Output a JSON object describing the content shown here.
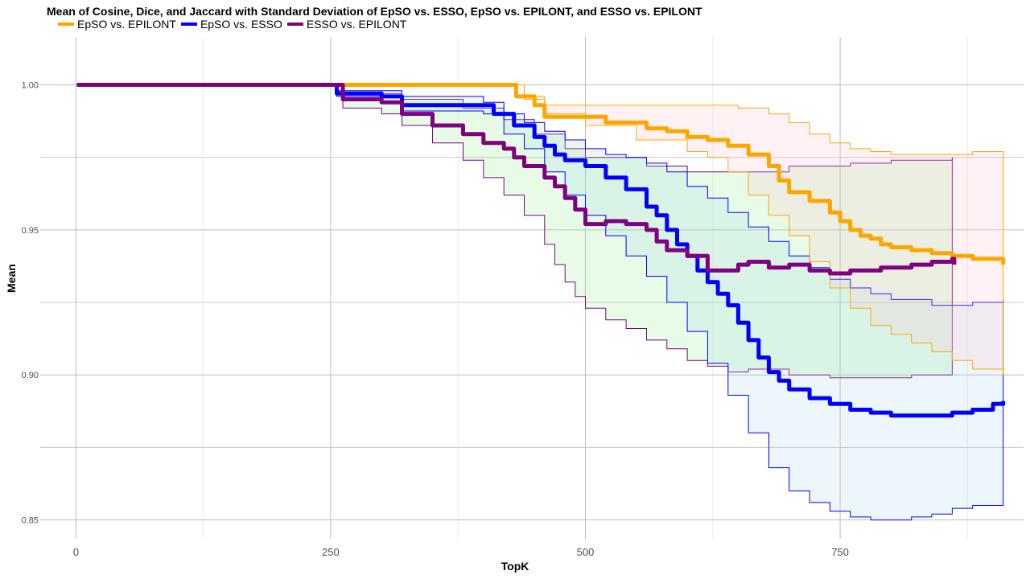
{
  "chart_data": {
    "type": "line",
    "title": "Mean of Cosine, Dice, and Jaccard with Standard Deviation of EpSO vs. ESSO, EpSO vs. EPILONT, and ESSO vs. EPILONT",
    "xlabel": "TopK",
    "ylabel": "Mean",
    "xlim": [
      -35,
      930
    ],
    "ylim": [
      0.8435,
      1.0165
    ],
    "x_ticks": [
      0,
      250,
      500,
      750
    ],
    "x_tick_labels": [
      "0",
      "250",
      "500",
      "750"
    ],
    "y_ticks": [
      0.85,
      0.9,
      0.95,
      1.0
    ],
    "y_tick_labels": [
      "0.85",
      "0.90",
      "0.95",
      "1.00"
    ],
    "grid": true,
    "legend_position": "top-left",
    "series": [
      {
        "name": "EpSO vs. EPILONT",
        "color": "#FFA500",
        "band_color": "#FFC0CB",
        "mean": [
          [
            1,
            1.0
          ],
          [
            430,
            1.0
          ],
          [
            432,
            0.996
          ],
          [
            450,
            0.993
          ],
          [
            460,
            0.989
          ],
          [
            500,
            0.989
          ],
          [
            520,
            0.987
          ],
          [
            560,
            0.985
          ],
          [
            580,
            0.984
          ],
          [
            600,
            0.982
          ],
          [
            620,
            0.981
          ],
          [
            640,
            0.979
          ],
          [
            660,
            0.976
          ],
          [
            680,
            0.972
          ],
          [
            690,
            0.967
          ],
          [
            700,
            0.963
          ],
          [
            720,
            0.96
          ],
          [
            740,
            0.956
          ],
          [
            750,
            0.953
          ],
          [
            760,
            0.95
          ],
          [
            770,
            0.948
          ],
          [
            780,
            0.947
          ],
          [
            790,
            0.945
          ],
          [
            800,
            0.944
          ],
          [
            820,
            0.943
          ],
          [
            840,
            0.942
          ],
          [
            860,
            0.941
          ],
          [
            880,
            0.94
          ],
          [
            900,
            0.94
          ],
          [
            910,
            0.938
          ]
        ],
        "sd_upper": [
          [
            1,
            1.0
          ],
          [
            430,
            1.0
          ],
          [
            440,
            0.996
          ],
          [
            460,
            0.993
          ],
          [
            500,
            0.993
          ],
          [
            550,
            0.993
          ],
          [
            600,
            0.993
          ],
          [
            650,
            0.992
          ],
          [
            680,
            0.99
          ],
          [
            700,
            0.987
          ],
          [
            720,
            0.983
          ],
          [
            740,
            0.98
          ],
          [
            760,
            0.978
          ],
          [
            780,
            0.977
          ],
          [
            800,
            0.976
          ],
          [
            840,
            0.976
          ],
          [
            880,
            0.977
          ],
          [
            910,
            0.976
          ]
        ],
        "sd_lower": [
          [
            1,
            1.0
          ],
          [
            430,
            1.0
          ],
          [
            440,
            0.995
          ],
          [
            460,
            0.99
          ],
          [
            500,
            0.986
          ],
          [
            550,
            0.981
          ],
          [
            600,
            0.977
          ],
          [
            620,
            0.975
          ],
          [
            640,
            0.97
          ],
          [
            660,
            0.962
          ],
          [
            680,
            0.955
          ],
          [
            700,
            0.948
          ],
          [
            720,
            0.939
          ],
          [
            740,
            0.93
          ],
          [
            760,
            0.923
          ],
          [
            780,
            0.917
          ],
          [
            800,
            0.914
          ],
          [
            820,
            0.911
          ],
          [
            840,
            0.908
          ],
          [
            860,
            0.905
          ],
          [
            880,
            0.902
          ],
          [
            910,
            0.9
          ]
        ]
      },
      {
        "name": "EpSO vs. ESSO",
        "color": "#0000FF",
        "band_color": "#ADD8E6",
        "mean": [
          [
            1,
            1.0
          ],
          [
            255,
            1.0
          ],
          [
            256,
            0.997
          ],
          [
            300,
            0.996
          ],
          [
            320,
            0.993
          ],
          [
            400,
            0.993
          ],
          [
            410,
            0.99
          ],
          [
            430,
            0.986
          ],
          [
            450,
            0.982
          ],
          [
            460,
            0.979
          ],
          [
            470,
            0.976
          ],
          [
            480,
            0.974
          ],
          [
            500,
            0.972
          ],
          [
            520,
            0.968
          ],
          [
            540,
            0.964
          ],
          [
            560,
            0.958
          ],
          [
            570,
            0.955
          ],
          [
            580,
            0.95
          ],
          [
            590,
            0.945
          ],
          [
            600,
            0.941
          ],
          [
            610,
            0.936
          ],
          [
            620,
            0.932
          ],
          [
            630,
            0.928
          ],
          [
            640,
            0.924
          ],
          [
            650,
            0.918
          ],
          [
            660,
            0.912
          ],
          [
            670,
            0.906
          ],
          [
            680,
            0.901
          ],
          [
            690,
            0.898
          ],
          [
            700,
            0.895
          ],
          [
            720,
            0.892
          ],
          [
            740,
            0.89
          ],
          [
            760,
            0.888
          ],
          [
            780,
            0.887
          ],
          [
            800,
            0.886
          ],
          [
            820,
            0.886
          ],
          [
            840,
            0.886
          ],
          [
            860,
            0.887
          ],
          [
            880,
            0.888
          ],
          [
            900,
            0.89
          ],
          [
            910,
            0.891
          ]
        ],
        "sd_upper": [
          [
            1,
            1.0
          ],
          [
            255,
            1.0
          ],
          [
            256,
            0.998
          ],
          [
            320,
            0.996
          ],
          [
            400,
            0.994
          ],
          [
            420,
            0.99
          ],
          [
            440,
            0.987
          ],
          [
            460,
            0.984
          ],
          [
            480,
            0.981
          ],
          [
            500,
            0.978
          ],
          [
            520,
            0.976
          ],
          [
            540,
            0.975
          ],
          [
            560,
            0.973
          ],
          [
            580,
            0.97
          ],
          [
            600,
            0.965
          ],
          [
            620,
            0.961
          ],
          [
            640,
            0.956
          ],
          [
            660,
            0.951
          ],
          [
            680,
            0.946
          ],
          [
            700,
            0.941
          ],
          [
            720,
            0.937
          ],
          [
            740,
            0.933
          ],
          [
            760,
            0.93
          ],
          [
            780,
            0.928
          ],
          [
            800,
            0.926
          ],
          [
            840,
            0.924
          ],
          [
            880,
            0.925
          ],
          [
            910,
            0.926
          ]
        ],
        "sd_lower": [
          [
            1,
            1.0
          ],
          [
            255,
            1.0
          ],
          [
            256,
            0.996
          ],
          [
            320,
            0.991
          ],
          [
            400,
            0.99
          ],
          [
            420,
            0.983
          ],
          [
            440,
            0.978
          ],
          [
            460,
            0.97
          ],
          [
            480,
            0.962
          ],
          [
            500,
            0.955
          ],
          [
            520,
            0.948
          ],
          [
            540,
            0.941
          ],
          [
            560,
            0.934
          ],
          [
            580,
            0.925
          ],
          [
            600,
            0.915
          ],
          [
            620,
            0.904
          ],
          [
            640,
            0.893
          ],
          [
            660,
            0.88
          ],
          [
            680,
            0.868
          ],
          [
            700,
            0.86
          ],
          [
            720,
            0.856
          ],
          [
            740,
            0.853
          ],
          [
            760,
            0.851
          ],
          [
            780,
            0.85
          ],
          [
            800,
            0.85
          ],
          [
            820,
            0.851
          ],
          [
            840,
            0.852
          ],
          [
            860,
            0.854
          ],
          [
            880,
            0.855
          ],
          [
            910,
            0.857
          ]
        ]
      },
      {
        "name": "ESSO vs. EPILONT",
        "color": "#800080",
        "band_color": "#90EE90",
        "mean": [
          [
            1,
            1.0
          ],
          [
            260,
            1.0
          ],
          [
            262,
            0.995
          ],
          [
            300,
            0.994
          ],
          [
            320,
            0.99
          ],
          [
            350,
            0.986
          ],
          [
            380,
            0.983
          ],
          [
            400,
            0.98
          ],
          [
            420,
            0.978
          ],
          [
            430,
            0.975
          ],
          [
            440,
            0.972
          ],
          [
            460,
            0.968
          ],
          [
            470,
            0.965
          ],
          [
            480,
            0.961
          ],
          [
            490,
            0.957
          ],
          [
            500,
            0.952
          ],
          [
            520,
            0.953
          ],
          [
            540,
            0.952
          ],
          [
            560,
            0.95
          ],
          [
            570,
            0.946
          ],
          [
            580,
            0.943
          ],
          [
            600,
            0.941
          ],
          [
            620,
            0.936
          ],
          [
            650,
            0.938
          ],
          [
            660,
            0.939
          ],
          [
            680,
            0.937
          ],
          [
            700,
            0.938
          ],
          [
            720,
            0.936
          ],
          [
            740,
            0.935
          ],
          [
            760,
            0.936
          ],
          [
            790,
            0.937
          ],
          [
            820,
            0.938
          ],
          [
            840,
            0.939
          ],
          [
            860,
            0.94
          ],
          [
            862,
            0.938
          ]
        ],
        "sd_upper": [
          [
            1,
            1.0
          ],
          [
            260,
            1.0
          ],
          [
            262,
            0.997
          ],
          [
            320,
            0.995
          ],
          [
            380,
            0.992
          ],
          [
            420,
            0.988
          ],
          [
            450,
            0.983
          ],
          [
            480,
            0.978
          ],
          [
            500,
            0.975
          ],
          [
            560,
            0.972
          ],
          [
            600,
            0.97
          ],
          [
            660,
            0.97
          ],
          [
            700,
            0.972
          ],
          [
            760,
            0.973
          ],
          [
            800,
            0.974
          ],
          [
            860,
            0.975
          ]
        ],
        "sd_lower": [
          [
            1,
            1.0
          ],
          [
            260,
            1.0
          ],
          [
            262,
            0.992
          ],
          [
            300,
            0.99
          ],
          [
            320,
            0.986
          ],
          [
            350,
            0.98
          ],
          [
            380,
            0.974
          ],
          [
            400,
            0.968
          ],
          [
            420,
            0.962
          ],
          [
            440,
            0.955
          ],
          [
            460,
            0.945
          ],
          [
            470,
            0.938
          ],
          [
            480,
            0.932
          ],
          [
            490,
            0.927
          ],
          [
            500,
            0.923
          ],
          [
            520,
            0.919
          ],
          [
            540,
            0.916
          ],
          [
            560,
            0.912
          ],
          [
            580,
            0.909
          ],
          [
            600,
            0.905
          ],
          [
            620,
            0.903
          ],
          [
            640,
            0.901
          ],
          [
            660,
            0.902
          ],
          [
            700,
            0.9
          ],
          [
            740,
            0.899
          ],
          [
            780,
            0.899
          ],
          [
            820,
            0.9
          ],
          [
            860,
            0.9
          ]
        ]
      }
    ]
  }
}
